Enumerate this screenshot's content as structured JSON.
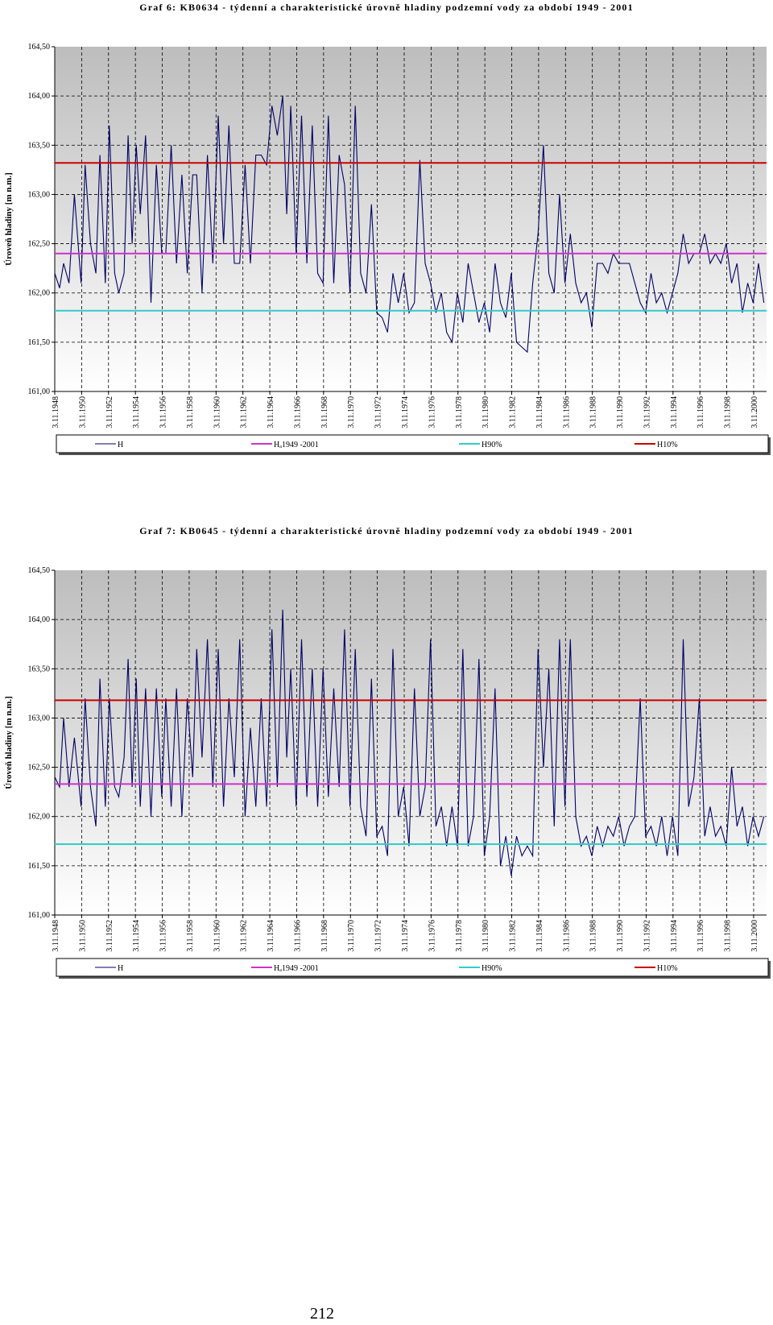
{
  "page_number": "212",
  "legend_labels": {
    "h": "H",
    "hmean": "Hₐ1949 -2001",
    "h90": "H90%",
    "h10": "H10%"
  },
  "colors": {
    "series": "#000066",
    "mean": "#cc33cc",
    "h90": "#33cccc",
    "h10": "#cc0000",
    "plot_top": "#bdbdbd",
    "plot_bottom": "#ffffff"
  },
  "chart_data": [
    {
      "type": "line",
      "title": "Graf 6: KB0634 - týdenní a charakteristické úrovně hladiny podzemní vody za období 1949 - 2001",
      "ylabel": "Úroveň hladiny [m n.m.]",
      "xlabel": "",
      "ylim": [
        161.0,
        164.5
      ],
      "xlim": [
        1948.84,
        2001.8
      ],
      "yticks": [
        "161,00",
        "161,50",
        "162,00",
        "162,50",
        "163,00",
        "163,50",
        "164,00",
        "164,50"
      ],
      "xticks": [
        "3.11.1948",
        "3.11.1950",
        "3.11.1952",
        "3.11.1954",
        "3.11.1956",
        "3.11.1958",
        "3.11.1960",
        "3.11.1962",
        "3.11.1964",
        "3.11.1966",
        "3.11.1968",
        "3.11.1970",
        "3.11.1972",
        "3.11.1974",
        "3.11.1976",
        "3.11.1978",
        "3.11.1980",
        "3.11.1982",
        "3.11.1984",
        "3.11.1986",
        "3.11.1988",
        "3.11.1990",
        "3.11.1992",
        "3.11.1994",
        "3.11.1996",
        "3.11.1998",
        "3.11.2000"
      ],
      "grid": true,
      "legend_position": "bottom",
      "reference_lines": {
        "H10": 163.32,
        "Hmean": 162.4,
        "H90": 161.82
      },
      "series": [
        {
          "name": "H",
          "x": [
            1948.84,
            1949.2,
            1949.5,
            1949.9,
            1950.3,
            1950.8,
            1951.1,
            1951.5,
            1951.9,
            1952.2,
            1952.6,
            1952.9,
            1953.3,
            1953.6,
            1954.0,
            1954.3,
            1954.6,
            1954.9,
            1955.2,
            1955.6,
            1956.0,
            1956.4,
            1956.8,
            1957.1,
            1957.5,
            1957.9,
            1958.3,
            1958.7,
            1959.1,
            1959.4,
            1959.8,
            1960.2,
            1960.6,
            1961.0,
            1961.4,
            1961.8,
            1962.2,
            1962.6,
            1963.0,
            1963.4,
            1963.8,
            1964.2,
            1964.6,
            1965.0,
            1965.4,
            1965.8,
            1966.1,
            1966.4,
            1966.8,
            1967.2,
            1967.6,
            1968.0,
            1968.4,
            1968.8,
            1969.2,
            1969.6,
            1970.0,
            1970.4,
            1970.8,
            1971.2,
            1971.6,
            1972.0,
            1972.4,
            1972.8,
            1973.2,
            1973.6,
            1974.0,
            1974.4,
            1974.8,
            1975.2,
            1975.6,
            1976.0,
            1976.4,
            1976.8,
            1977.2,
            1977.6,
            1978.0,
            1978.4,
            1978.8,
            1979.2,
            1979.6,
            1980.0,
            1980.4,
            1980.8,
            1981.2,
            1981.6,
            1982.0,
            1982.4,
            1982.8,
            1983.2,
            1983.6,
            1984.0,
            1984.4,
            1984.8,
            1985.2,
            1985.6,
            1986.0,
            1986.4,
            1986.8,
            1987.2,
            1987.6,
            1988.0,
            1988.4,
            1988.8,
            1989.2,
            1989.6,
            1990.0,
            1990.4,
            1990.8,
            1991.2,
            1991.6,
            1992.0,
            1992.4,
            1992.8,
            1993.2,
            1993.6,
            1994.0,
            1994.4,
            1994.8,
            1995.2,
            1995.6,
            1996.0,
            1996.4,
            1996.8,
            1997.2,
            1997.6,
            1998.0,
            1998.4,
            1998.8,
            1999.2,
            1999.6,
            2000.0,
            2000.4,
            2000.8,
            2001.2,
            2001.6
          ],
          "y": [
            162.2,
            162.05,
            162.3,
            162.1,
            163.0,
            162.1,
            163.3,
            162.5,
            162.2,
            163.4,
            162.1,
            163.7,
            162.2,
            162.0,
            162.2,
            163.6,
            162.5,
            163.5,
            162.8,
            163.6,
            161.9,
            163.3,
            162.4,
            162.4,
            163.5,
            162.3,
            163.2,
            162.2,
            163.2,
            163.2,
            162.0,
            163.4,
            162.3,
            163.8,
            162.5,
            163.7,
            162.3,
            162.3,
            163.3,
            162.3,
            163.4,
            163.4,
            163.3,
            163.9,
            163.6,
            164.0,
            162.8,
            163.9,
            162.4,
            163.8,
            162.3,
            163.7,
            162.2,
            162.1,
            163.8,
            162.1,
            163.4,
            163.1,
            162.0,
            163.9,
            162.2,
            162.0,
            162.9,
            161.8,
            161.75,
            161.6,
            162.2,
            161.9,
            162.2,
            161.8,
            161.9,
            163.35,
            162.3,
            162.1,
            161.8,
            162.0,
            161.6,
            161.5,
            162.0,
            161.7,
            162.3,
            162.0,
            161.7,
            161.9,
            161.6,
            162.3,
            161.9,
            161.75,
            162.2,
            161.5,
            161.45,
            161.4,
            162.1,
            162.6,
            163.5,
            162.2,
            162.0,
            163.0,
            162.1,
            162.6,
            162.1,
            161.9,
            162.0,
            161.65,
            162.3,
            162.3,
            162.2,
            162.4,
            162.3,
            162.3,
            162.3,
            162.1,
            161.9,
            161.8,
            162.2,
            161.9,
            162.0,
            161.8,
            162.0,
            162.2,
            162.6,
            162.3,
            162.4,
            162.4,
            162.6,
            162.3,
            162.4,
            162.3,
            162.5,
            162.1,
            162.3,
            161.8,
            162.1,
            161.9,
            162.3,
            161.9
          ]
        }
      ]
    },
    {
      "type": "line",
      "title": "Graf 7: KB0645 - týdenní a charakteristické úrovně hladiny podzemní vody za období 1949 - 2001",
      "ylabel": "Úroveň hladiny [m n.m.]",
      "xlabel": "",
      "ylim": [
        161.0,
        164.5
      ],
      "xlim": [
        1948.84,
        2001.8
      ],
      "yticks": [
        "161,00",
        "161,50",
        "162,00",
        "162,50",
        "163,00",
        "163,50",
        "164,00",
        "164,50"
      ],
      "xticks": [
        "3.11.1948",
        "3.11.1950",
        "3.11.1952",
        "3.11.1954",
        "3.11.1956",
        "3.11.1958",
        "3.11.1960",
        "3.11.1962",
        "3.11.1964",
        "3.11.1966",
        "3.11.1968",
        "3.11.1970",
        "3.11.1972",
        "3.11.1974",
        "3.11.1976",
        "3.11.1978",
        "3.11.1980",
        "3.11.1982",
        "3.11.1984",
        "3.11.1986",
        "3.11.1988",
        "3.11.1990",
        "3.11.1992",
        "3.11.1994",
        "3.11.1996",
        "3.11.1998",
        "3.11.2000"
      ],
      "grid": true,
      "legend_position": "bottom",
      "reference_lines": {
        "H10": 163.18,
        "Hmean": 162.33,
        "H90": 161.72
      },
      "series": [
        {
          "name": "H",
          "x": [
            1948.84,
            1949.2,
            1949.5,
            1949.9,
            1950.3,
            1950.8,
            1951.1,
            1951.5,
            1951.9,
            1952.2,
            1952.6,
            1952.9,
            1953.3,
            1953.6,
            1954.0,
            1954.3,
            1954.6,
            1954.9,
            1955.2,
            1955.6,
            1956.0,
            1956.4,
            1956.8,
            1957.1,
            1957.5,
            1957.9,
            1958.3,
            1958.7,
            1959.1,
            1959.4,
            1959.8,
            1960.2,
            1960.6,
            1961.0,
            1961.4,
            1961.8,
            1962.2,
            1962.6,
            1963.0,
            1963.4,
            1963.8,
            1964.2,
            1964.6,
            1965.0,
            1965.4,
            1965.8,
            1966.1,
            1966.4,
            1966.8,
            1967.2,
            1967.6,
            1968.0,
            1968.4,
            1968.8,
            1969.2,
            1969.6,
            1970.0,
            1970.4,
            1970.8,
            1971.2,
            1971.6,
            1972.0,
            1972.4,
            1972.8,
            1973.2,
            1973.6,
            1974.0,
            1974.4,
            1974.8,
            1975.2,
            1975.6,
            1976.0,
            1976.4,
            1976.8,
            1977.2,
            1977.6,
            1978.0,
            1978.4,
            1978.8,
            1979.2,
            1979.6,
            1980.0,
            1980.4,
            1980.8,
            1981.2,
            1981.6,
            1982.0,
            1982.4,
            1982.8,
            1983.2,
            1983.6,
            1984.0,
            1984.4,
            1984.8,
            1985.2,
            1985.6,
            1986.0,
            1986.4,
            1986.8,
            1987.2,
            1987.6,
            1988.0,
            1988.4,
            1988.8,
            1989.2,
            1989.6,
            1990.0,
            1990.4,
            1990.8,
            1991.2,
            1991.6,
            1992.0,
            1992.4,
            1992.8,
            1993.2,
            1993.6,
            1994.0,
            1994.4,
            1994.8,
            1995.2,
            1995.6,
            1996.0,
            1996.4,
            1996.8,
            1997.2,
            1997.6,
            1998.0,
            1998.4,
            1998.8,
            1999.2,
            1999.6,
            2000.0,
            2000.4,
            2000.8,
            2001.2,
            2001.6
          ],
          "y": [
            162.4,
            162.3,
            163.0,
            162.3,
            162.8,
            162.1,
            163.2,
            162.3,
            161.9,
            163.4,
            162.1,
            163.2,
            162.3,
            162.2,
            162.6,
            163.6,
            162.3,
            163.4,
            162.1,
            163.3,
            162.0,
            163.3,
            162.2,
            163.2,
            162.1,
            163.3,
            162.0,
            163.2,
            162.4,
            163.7,
            162.6,
            163.8,
            162.3,
            163.7,
            162.1,
            163.2,
            162.4,
            163.8,
            162.0,
            162.9,
            162.1,
            163.2,
            162.1,
            163.9,
            162.3,
            164.1,
            162.6,
            163.5,
            162.1,
            163.8,
            162.2,
            163.5,
            162.1,
            163.5,
            162.2,
            163.3,
            162.3,
            163.9,
            162.1,
            163.7,
            162.1,
            161.8,
            163.4,
            161.8,
            161.9,
            161.6,
            163.7,
            162.0,
            162.3,
            161.7,
            163.3,
            162.0,
            162.3,
            163.8,
            161.9,
            162.1,
            161.7,
            162.1,
            161.7,
            163.7,
            161.7,
            162.0,
            163.6,
            161.6,
            162.0,
            163.3,
            161.5,
            161.8,
            161.4,
            161.8,
            161.6,
            161.7,
            161.6,
            163.7,
            162.5,
            163.5,
            161.9,
            163.8,
            162.1,
            163.8,
            162.0,
            161.7,
            161.8,
            161.6,
            161.9,
            161.7,
            161.9,
            161.8,
            162.0,
            161.7,
            161.9,
            162.0,
            163.2,
            161.8,
            161.9,
            161.7,
            162.0,
            161.6,
            162.0,
            161.6,
            163.8,
            162.1,
            162.4,
            163.2,
            161.8,
            162.1,
            161.8,
            161.9,
            161.7,
            162.5,
            161.9,
            162.1,
            161.7,
            162.0,
            161.8,
            162.0
          ]
        }
      ]
    }
  ]
}
